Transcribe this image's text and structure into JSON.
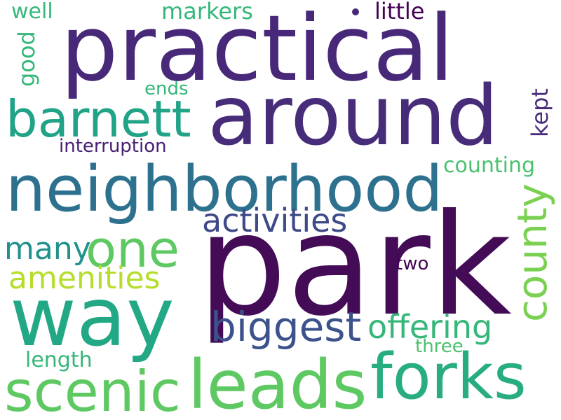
{
  "words": {
    "park": {
      "text": "park",
      "color": "#440c57"
    },
    "practical": {
      "text": "practical",
      "color": "#482878"
    },
    "around": {
      "text": "around",
      "color": "#472c7a"
    },
    "neighborhood": {
      "text": "neighborhood",
      "color": "#2d718e"
    },
    "way": {
      "text": "way",
      "color": "#22a884"
    },
    "leads": {
      "text": "leads",
      "color": "#5ec962"
    },
    "scenic": {
      "text": "scenic",
      "color": "#5ec962"
    },
    "forks": {
      "text": "forks",
      "color": "#27ad81"
    },
    "barnett": {
      "text": "barnett",
      "color": "#20a386"
    },
    "one": {
      "text": "one",
      "color": "#5ec962"
    },
    "county": {
      "text": "county",
      "color": "#7ad151"
    },
    "biggest": {
      "text": "biggest",
      "color": "#3b528b"
    },
    "activities": {
      "text": "activities",
      "color": "#3e4989"
    },
    "offering": {
      "text": "offering",
      "color": "#35b779"
    },
    "amenities": {
      "text": "amenities",
      "color": "#b5de2b"
    },
    "many": {
      "text": "many",
      "color": "#21918c"
    },
    "markers": {
      "text": "markers",
      "color": "#35b779"
    },
    "little": {
      "text": "little",
      "color": "#440154"
    },
    "well": {
      "text": "well",
      "color": "#35b779"
    },
    "good": {
      "text": "good",
      "color": "#35b779"
    },
    "ends": {
      "text": "ends",
      "color": "#35b779"
    },
    "kept": {
      "text": "kept",
      "color": "#472d7b"
    },
    "interruption": {
      "text": "interruption",
      "color": "#482173"
    },
    "counting": {
      "text": "counting",
      "color": "#4ac16d"
    },
    "two": {
      "text": "two",
      "color": "#440154"
    },
    "three": {
      "text": "three",
      "color": "#4ac16d"
    },
    "length": {
      "text": "length",
      "color": "#35b779"
    }
  }
}
